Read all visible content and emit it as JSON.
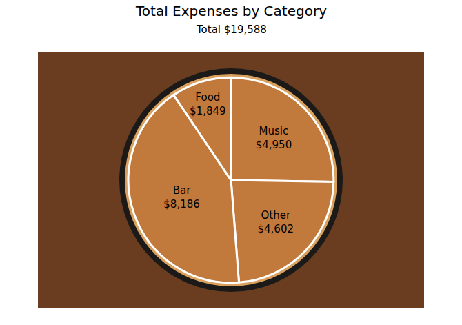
{
  "chart_data": {
    "type": "pie",
    "title": "Total Expenses by Category",
    "subtitle": "Total $19,588",
    "categories": [
      "Music",
      "Other",
      "Bar",
      "Food"
    ],
    "values": [
      4950,
      4602,
      8186,
      1849
    ],
    "value_labels": [
      "$4,950",
      "$4,602",
      "$8,186",
      "$1,849"
    ],
    "data_labels": true,
    "colors": [
      "#c27a3c",
      "#c27a3c",
      "#c27a3c",
      "#c27a3c"
    ]
  }
}
